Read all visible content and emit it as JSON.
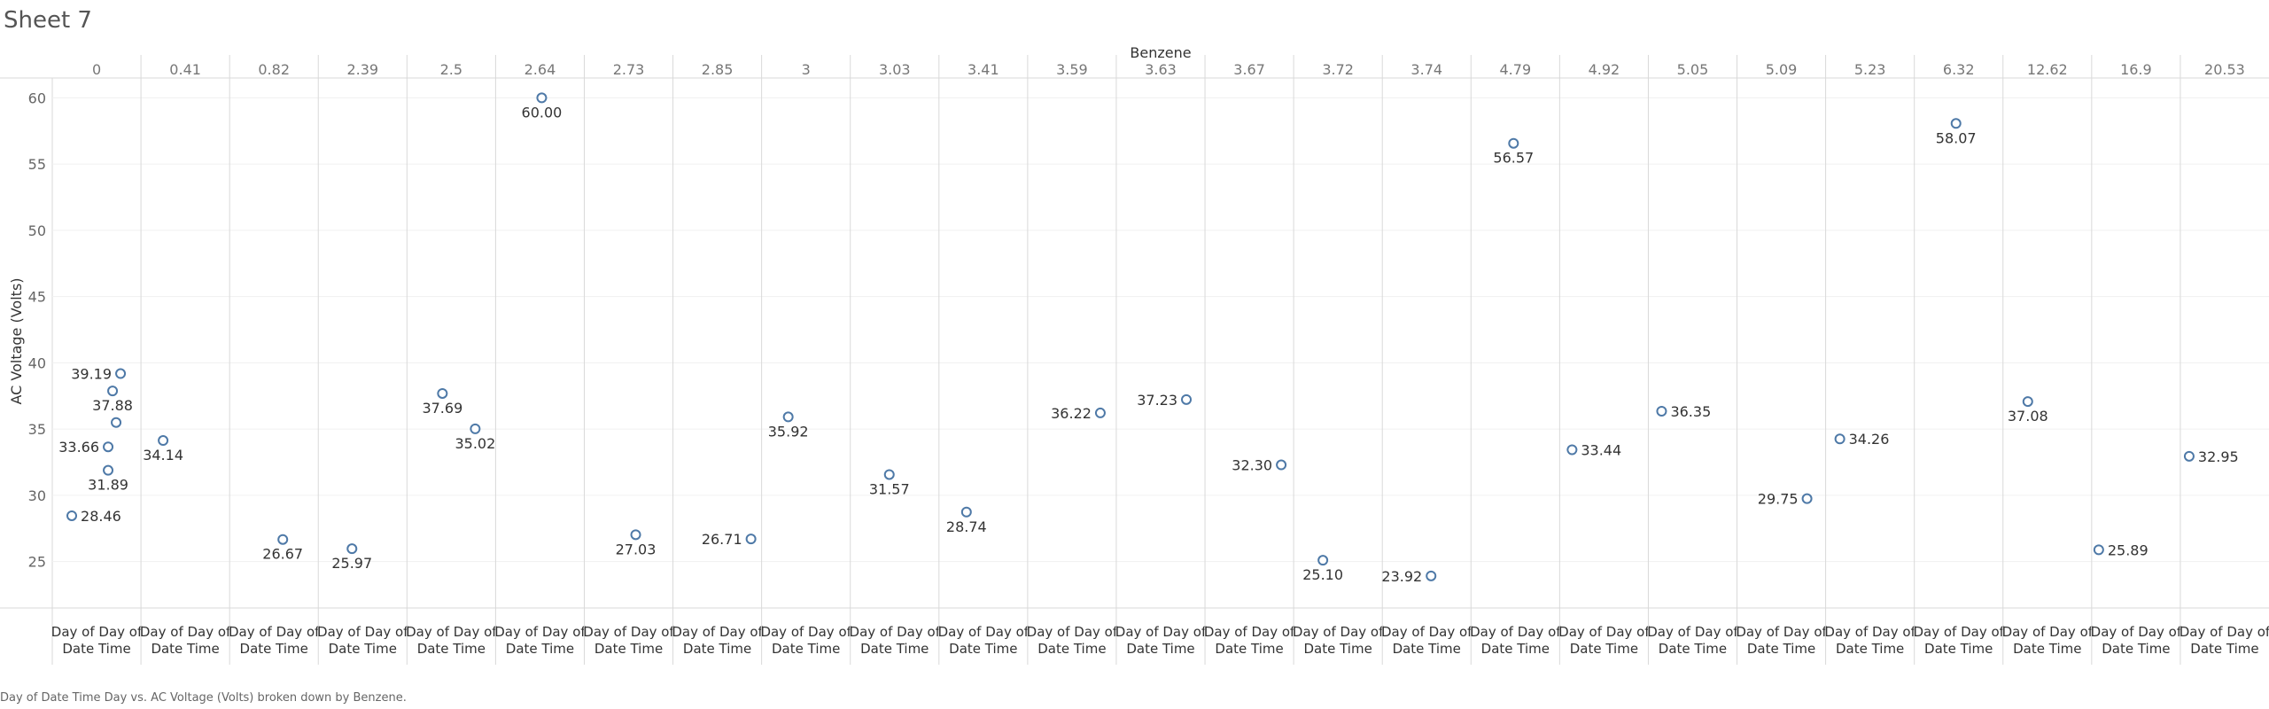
{
  "sheet_title": "Sheet 7",
  "caption": "Day of Date Time Day vs. AC Voltage (Volts) broken down by Benzene.",
  "chart_data": {
    "type": "scatter",
    "column_field": "Benzene",
    "ylabel": "AC Voltage (Volts)",
    "ylim": [
      21.5,
      61.5
    ],
    "yticks": [
      25,
      30,
      35,
      40,
      45,
      50,
      55,
      60
    ],
    "footer_line1": "Day of Day of",
    "footer_line2": "Date Time",
    "mark_color": "#4e79a7",
    "columns": [
      {
        "benzene": "0",
        "points": [
          {
            "y": 28.46,
            "x": 0.22,
            "label": "28.46",
            "pos": "right"
          },
          {
            "y": 31.89,
            "x": 0.63,
            "label": "31.89",
            "pos": "below"
          },
          {
            "y": 33.66,
            "x": 0.63,
            "label": "33.66",
            "pos": "left"
          },
          {
            "y": 35.5,
            "x": 0.72,
            "label": "",
            "pos": "none"
          },
          {
            "y": 37.88,
            "x": 0.68,
            "label": "37.88",
            "pos": "below"
          },
          {
            "y": 39.19,
            "x": 0.77,
            "label": "39.19",
            "pos": "left"
          }
        ]
      },
      {
        "benzene": "0.41",
        "points": [
          {
            "y": 34.14,
            "x": 0.25,
            "label": "34.14",
            "pos": "below"
          }
        ]
      },
      {
        "benzene": "0.82",
        "points": [
          {
            "y": 26.67,
            "x": 0.6,
            "label": "26.67",
            "pos": "below"
          }
        ]
      },
      {
        "benzene": "2.39",
        "points": [
          {
            "y": 25.97,
            "x": 0.38,
            "label": "25.97",
            "pos": "below"
          }
        ]
      },
      {
        "benzene": "2.5",
        "points": [
          {
            "y": 37.69,
            "x": 0.4,
            "label": "37.69",
            "pos": "below"
          },
          {
            "y": 35.02,
            "x": 0.77,
            "label": "35.02",
            "pos": "below"
          }
        ]
      },
      {
        "benzene": "2.64",
        "points": [
          {
            "y": 60.0,
            "x": 0.52,
            "label": "60.00",
            "pos": "below"
          }
        ]
      },
      {
        "benzene": "2.73",
        "points": [
          {
            "y": 27.03,
            "x": 0.58,
            "label": "27.03",
            "pos": "below"
          }
        ]
      },
      {
        "benzene": "2.85",
        "points": [
          {
            "y": 26.71,
            "x": 0.88,
            "label": "26.71",
            "pos": "left"
          }
        ]
      },
      {
        "benzene": "3",
        "points": [
          {
            "y": 35.92,
            "x": 0.3,
            "label": "35.92",
            "pos": "below"
          }
        ]
      },
      {
        "benzene": "3.03",
        "points": [
          {
            "y": 31.57,
            "x": 0.44,
            "label": "31.57",
            "pos": "below"
          }
        ]
      },
      {
        "benzene": "3.41",
        "points": [
          {
            "y": 28.74,
            "x": 0.31,
            "label": "28.74",
            "pos": "below"
          }
        ]
      },
      {
        "benzene": "3.59",
        "points": [
          {
            "y": 36.22,
            "x": 0.82,
            "label": "36.22",
            "pos": "left"
          }
        ]
      },
      {
        "benzene": "3.63",
        "points": [
          {
            "y": 37.23,
            "x": 0.79,
            "label": "37.23",
            "pos": "left"
          }
        ]
      },
      {
        "benzene": "3.67",
        "points": [
          {
            "y": 32.3,
            "x": 0.86,
            "label": "32.30",
            "pos": "left"
          }
        ]
      },
      {
        "benzene": "3.72",
        "points": [
          {
            "y": 25.1,
            "x": 0.33,
            "label": "25.10",
            "pos": "below"
          }
        ]
      },
      {
        "benzene": "3.74",
        "points": [
          {
            "y": 23.92,
            "x": 0.55,
            "label": "23.92",
            "pos": "left"
          }
        ]
      },
      {
        "benzene": "4.79",
        "points": [
          {
            "y": 56.57,
            "x": 0.48,
            "label": "56.57",
            "pos": "below"
          }
        ]
      },
      {
        "benzene": "4.92",
        "points": [
          {
            "y": 33.44,
            "x": 0.14,
            "label": "33.44",
            "pos": "right"
          }
        ]
      },
      {
        "benzene": "5.05",
        "points": [
          {
            "y": 36.35,
            "x": 0.15,
            "label": "36.35",
            "pos": "right"
          }
        ]
      },
      {
        "benzene": "5.09",
        "points": [
          {
            "y": 29.75,
            "x": 0.79,
            "label": "29.75",
            "pos": "left"
          }
        ]
      },
      {
        "benzene": "5.23",
        "points": [
          {
            "y": 34.26,
            "x": 0.16,
            "label": "34.26",
            "pos": "right"
          }
        ]
      },
      {
        "benzene": "6.32",
        "points": [
          {
            "y": 58.07,
            "x": 0.47,
            "label": "58.07",
            "pos": "below"
          }
        ]
      },
      {
        "benzene": "12.62",
        "points": [
          {
            "y": 37.08,
            "x": 0.28,
            "label": "37.08",
            "pos": "below"
          }
        ]
      },
      {
        "benzene": "16.9",
        "points": [
          {
            "y": 25.89,
            "x": 0.08,
            "label": "25.89",
            "pos": "right"
          }
        ]
      },
      {
        "benzene": "20.53",
        "points": [
          {
            "y": 32.95,
            "x": 0.1,
            "label": "32.95",
            "pos": "right"
          }
        ]
      }
    ]
  }
}
